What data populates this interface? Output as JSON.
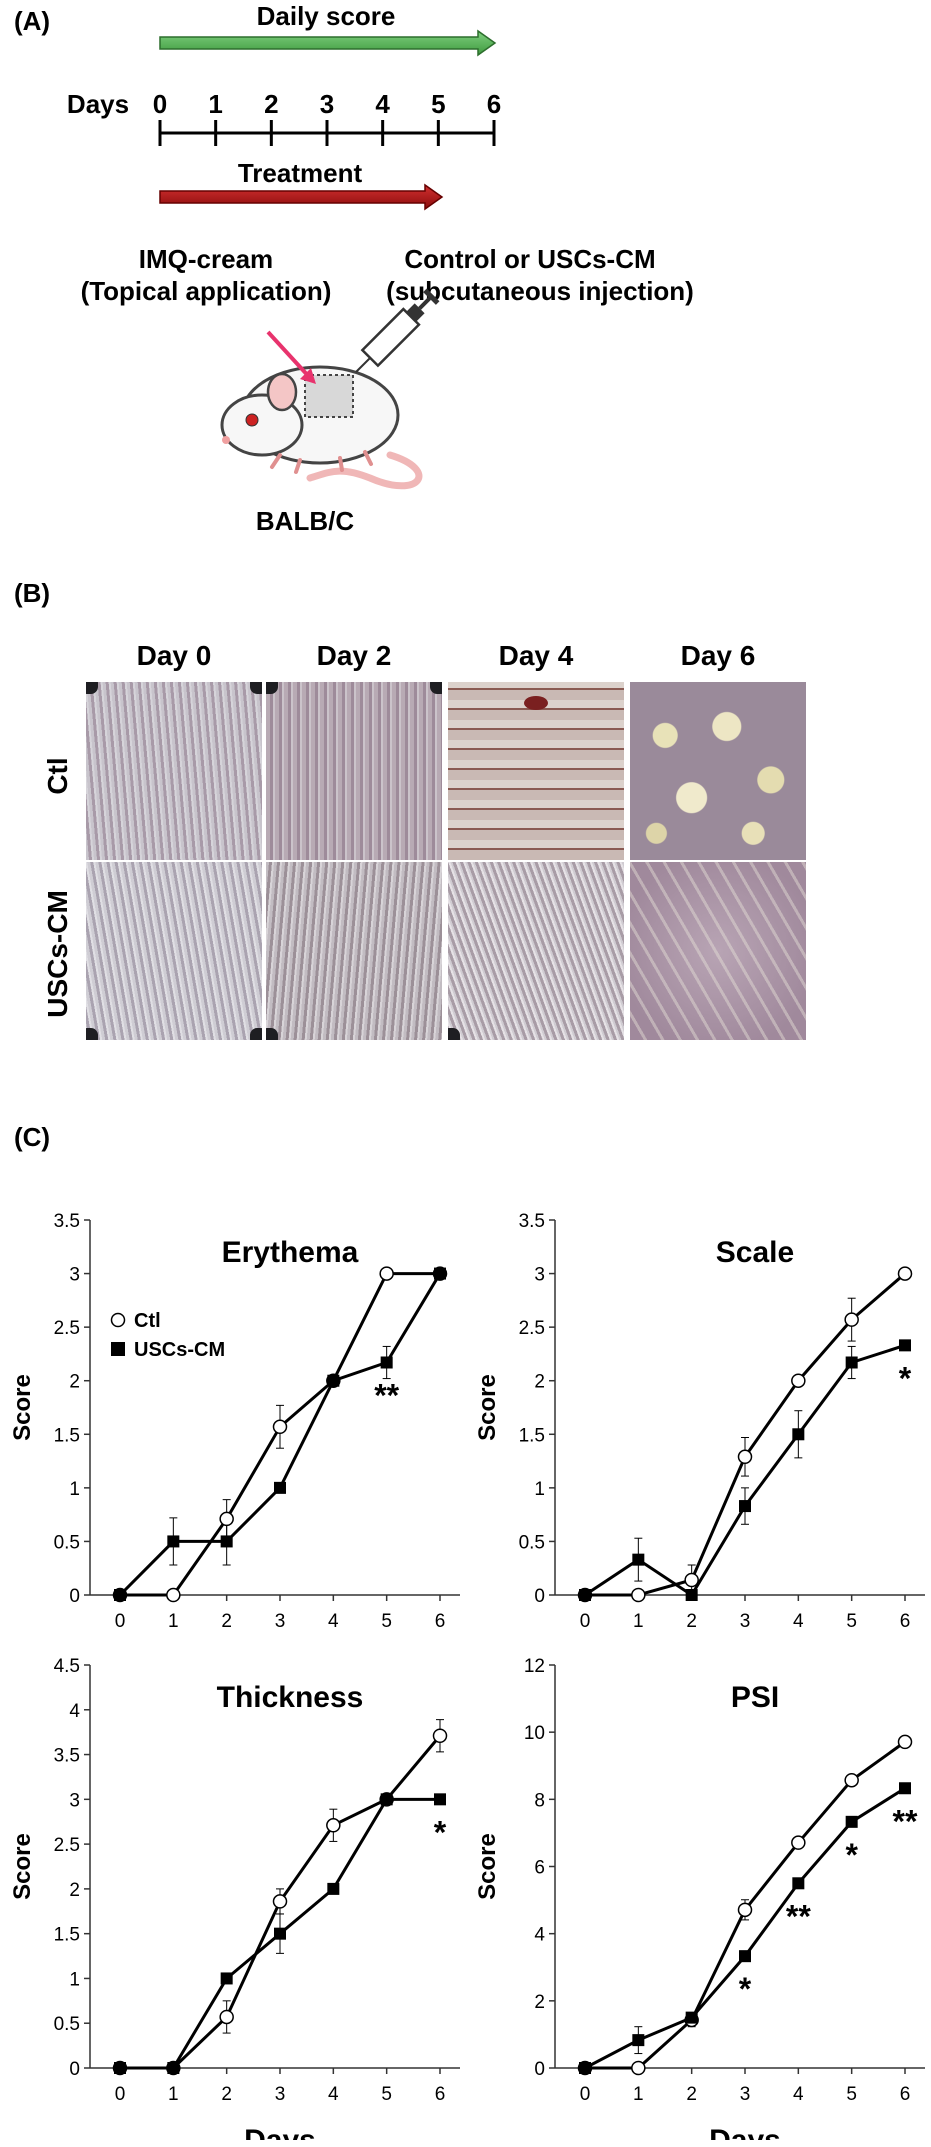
{
  "panels": {
    "a": "(A)",
    "b": "(B)",
    "c": "(C)"
  },
  "timeline": {
    "daily_score_label": "Daily score",
    "days_label": "Days",
    "ticks": [
      "0",
      "1",
      "2",
      "3",
      "4",
      "5",
      "6"
    ],
    "treatment_label": "Treatment",
    "left_caption_line1": "IMQ-cream",
    "left_caption_line2": "(Topical application)",
    "right_caption_line1": "Control or USCs-CM",
    "right_caption_line2": "(subcutaneous injection)",
    "mouse_label": "BALB/C",
    "colors": {
      "daily_score_arrow": "#5cb85c",
      "treatment_arrow": "#b01818",
      "pink_arrow": "#e8336d"
    }
  },
  "photos": {
    "columns": [
      "Day 0",
      "Day 2",
      "Day 4",
      "Day 6"
    ],
    "rows": [
      "Ctl",
      "USCs-CM"
    ]
  },
  "chart_data": [
    {
      "type": "line",
      "title": "Erythema",
      "ylabel": "Score",
      "xlabel": "",
      "x": [
        0,
        1,
        2,
        3,
        4,
        5,
        6
      ],
      "ylim": [
        0,
        3.5
      ],
      "yticks": [
        "0",
        "0.5",
        "1",
        "1.5",
        "2",
        "2.5",
        "3",
        "3.5"
      ],
      "legend": [
        "Ctl",
        "USCs-CM"
      ],
      "legend_position": "top-left",
      "series": [
        {
          "name": "Ctl",
          "marker": "circle-open",
          "values": [
            0,
            0,
            0.71,
            1.57,
            2.0,
            3.0,
            3.0
          ],
          "errors": [
            0,
            0,
            0.18,
            0.2,
            0,
            0,
            0
          ]
        },
        {
          "name": "USCs-CM",
          "marker": "square-filled",
          "values": [
            0,
            0.5,
            0.5,
            1.0,
            2.0,
            2.17,
            3.0
          ],
          "errors": [
            0,
            0.22,
            0.22,
            0,
            0,
            0.15,
            0
          ]
        }
      ],
      "annotations": [
        {
          "x": 5,
          "text": "**"
        }
      ]
    },
    {
      "type": "line",
      "title": "Scale",
      "ylabel": "Score",
      "xlabel": "",
      "x": [
        0,
        1,
        2,
        3,
        4,
        5,
        6
      ],
      "ylim": [
        0,
        3.5
      ],
      "yticks": [
        "0",
        "0.5",
        "1",
        "1.5",
        "2",
        "2.5",
        "3",
        "3.5"
      ],
      "series": [
        {
          "name": "Ctl",
          "marker": "circle-open",
          "values": [
            0,
            0,
            0.14,
            1.29,
            2.0,
            2.57,
            3.0
          ],
          "errors": [
            0,
            0,
            0.14,
            0.18,
            0,
            0.2,
            0
          ]
        },
        {
          "name": "USCs-CM",
          "marker": "square-filled",
          "values": [
            0,
            0.33,
            0,
            0.83,
            1.5,
            2.17,
            2.33
          ],
          "errors": [
            0,
            0.2,
            0,
            0.17,
            0.22,
            0.15,
            0
          ]
        }
      ],
      "annotations": [
        {
          "x": 6,
          "text": "*"
        }
      ]
    },
    {
      "type": "line",
      "title": "Thickness",
      "ylabel": "Score",
      "xlabel": "Days",
      "x": [
        0,
        1,
        2,
        3,
        4,
        5,
        6
      ],
      "ylim": [
        0,
        4.5
      ],
      "yticks": [
        "0",
        "0.5",
        "1",
        "1.5",
        "2",
        "2.5",
        "3",
        "3.5",
        "4",
        "4.5"
      ],
      "series": [
        {
          "name": "Ctl",
          "marker": "circle-open",
          "values": [
            0,
            0,
            0.57,
            1.86,
            2.71,
            3.0,
            3.71
          ],
          "errors": [
            0,
            0,
            0.18,
            0.14,
            0.18,
            0,
            0.18
          ]
        },
        {
          "name": "USCs-CM",
          "marker": "square-filled",
          "values": [
            0,
            0,
            1.0,
            1.5,
            2.0,
            3.0,
            3.0
          ],
          "errors": [
            0,
            0,
            0,
            0.22,
            0,
            0,
            0
          ]
        }
      ],
      "annotations": [
        {
          "x": 6,
          "text": "*"
        }
      ]
    },
    {
      "type": "line",
      "title": "PSI",
      "ylabel": "Score",
      "xlabel": "Days",
      "x": [
        0,
        1,
        2,
        3,
        4,
        5,
        6
      ],
      "ylim": [
        0,
        12
      ],
      "yticks": [
        "0",
        "2",
        "4",
        "6",
        "8",
        "10",
        "12"
      ],
      "series": [
        {
          "name": "Ctl",
          "marker": "circle-open",
          "values": [
            0,
            0,
            1.43,
            4.71,
            6.71,
            8.57,
            9.71
          ],
          "errors": [
            0,
            0,
            0.2,
            0.3,
            0,
            0,
            0
          ]
        },
        {
          "name": "USCs-CM",
          "marker": "square-filled",
          "values": [
            0,
            0.83,
            1.5,
            3.33,
            5.5,
            7.33,
            8.33
          ],
          "errors": [
            0,
            0.4,
            0,
            0,
            0,
            0,
            0
          ]
        }
      ],
      "annotations": [
        {
          "x": 3,
          "text": "*"
        },
        {
          "x": 4,
          "text": "**"
        },
        {
          "x": 5,
          "text": "*"
        },
        {
          "x": 6,
          "text": "**"
        }
      ]
    }
  ]
}
